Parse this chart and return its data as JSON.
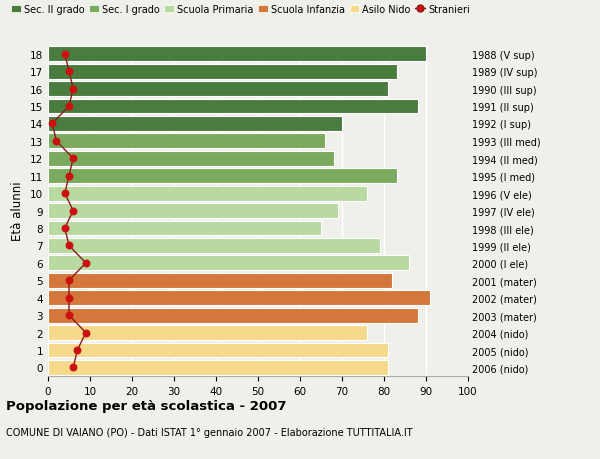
{
  "ages": [
    0,
    1,
    2,
    3,
    4,
    5,
    6,
    7,
    8,
    9,
    10,
    11,
    12,
    13,
    14,
    15,
    16,
    17,
    18
  ],
  "bar_values": [
    81,
    81,
    76,
    88,
    91,
    82,
    86,
    79,
    65,
    69,
    76,
    83,
    68,
    66,
    70,
    88,
    81,
    83,
    90
  ],
  "right_labels": [
    "2006 (nido)",
    "2005 (nido)",
    "2004 (nido)",
    "2003 (mater)",
    "2002 (mater)",
    "2001 (mater)",
    "2000 (I ele)",
    "1999 (II ele)",
    "1998 (III ele)",
    "1997 (IV ele)",
    "1996 (V ele)",
    "1995 (I med)",
    "1994 (II med)",
    "1993 (III med)",
    "1992 (I sup)",
    "1991 (II sup)",
    "1990 (III sup)",
    "1989 (IV sup)",
    "1988 (V sup)"
  ],
  "bar_colors": [
    "#f7d98b",
    "#f7d98b",
    "#f7d98b",
    "#d4773a",
    "#d4773a",
    "#d4773a",
    "#b8d9a0",
    "#b8d9a0",
    "#b8d9a0",
    "#b8d9a0",
    "#b8d9a0",
    "#7aaa5e",
    "#7aaa5e",
    "#7aaa5e",
    "#4a7c3f",
    "#4a7c3f",
    "#4a7c3f",
    "#4a7c3f",
    "#4a7c3f"
  ],
  "stranieri_values": [
    6,
    7,
    9,
    5,
    5,
    5,
    9,
    5,
    4,
    6,
    4,
    5,
    6,
    2,
    1,
    5,
    6,
    5,
    4
  ],
  "legend_labels": [
    "Sec. II grado",
    "Sec. I grado",
    "Scuola Primaria",
    "Scuola Infanzia",
    "Asilo Nido",
    "Stranieri"
  ],
  "legend_colors": [
    "#4a7c3f",
    "#7aaa5e",
    "#b8d9a0",
    "#d4773a",
    "#f7d98b",
    "#cc0000"
  ],
  "ylabel": "Età alunni",
  "title_bold": "Popolazione per età scolastica - 2007",
  "subtitle": "COMUNE DI VAIANO (PO) - Dati ISTAT 1° gennaio 2007 - Elaborazione TUTTITALIA.IT",
  "xlim": [
    0,
    100
  ],
  "bg_color": "#f0f0eb",
  "grid_color": "#ffffff"
}
